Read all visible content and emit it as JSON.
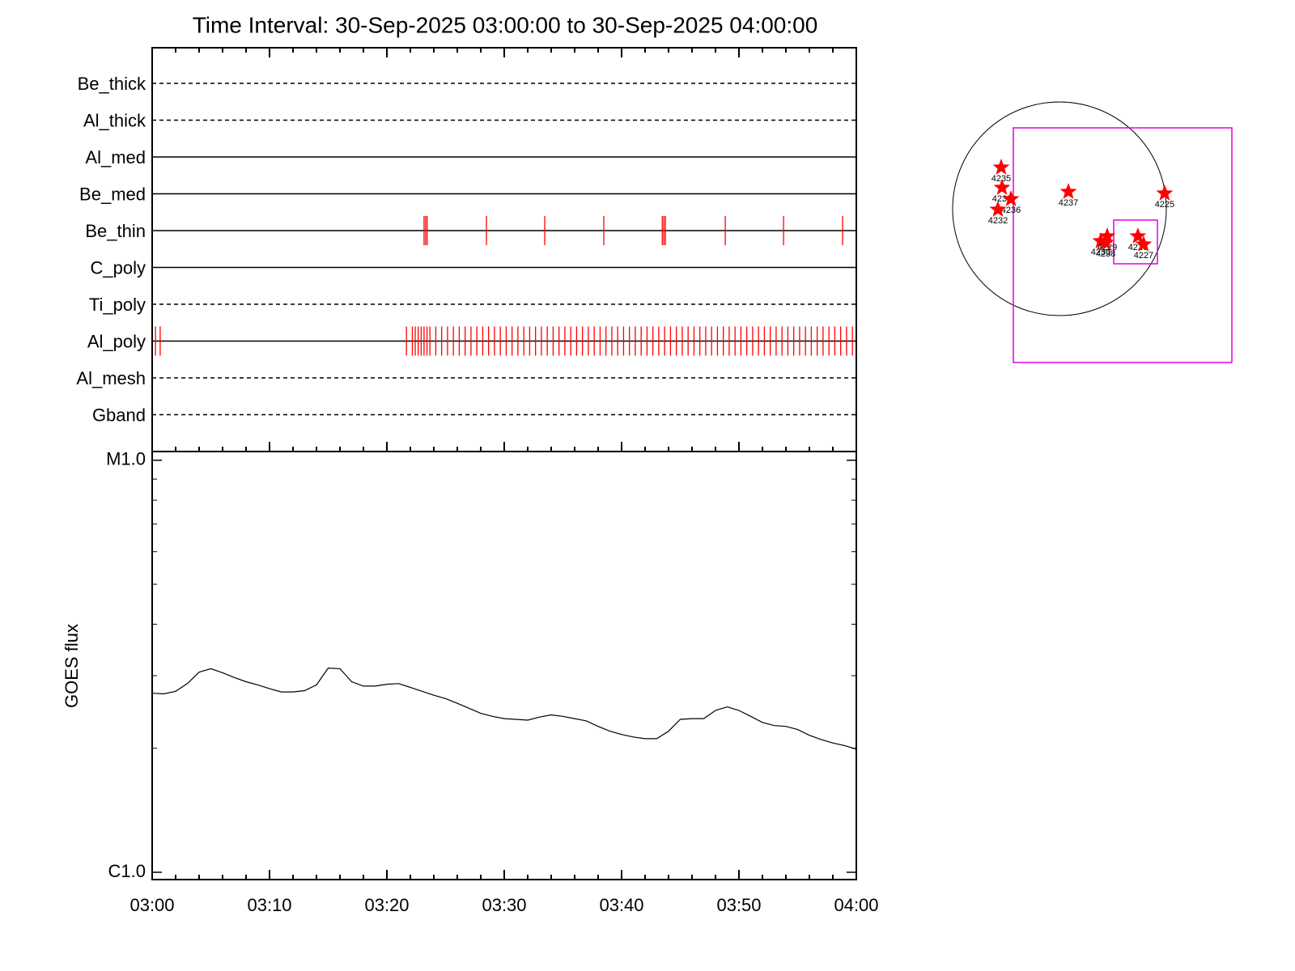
{
  "chart_data": [
    {
      "type": "event",
      "title": "Time Interval: 30-Sep-2025 03:00:00 to 30-Sep-2025 04:00:00",
      "xlim": [
        "03:00",
        "04:00"
      ],
      "event_color": "#ff0000",
      "rows": [
        {
          "name": "Be_thick",
          "dashed": true
        },
        {
          "name": "Al_thick",
          "dashed": true
        },
        {
          "name": "Al_med",
          "dashed": false
        },
        {
          "name": "Be_med",
          "dashed": false
        },
        {
          "name": "Be_thin",
          "dashed": false,
          "events": [
            "03:23:10",
            "03:23:18",
            "03:23:26",
            "03:28:29",
            "03:33:27",
            "03:38:29",
            "03:43:28",
            "03:43:36",
            "03:43:44",
            "03:48:50",
            "03:53:48",
            "03:58:50"
          ]
        },
        {
          "name": "C_poly",
          "dashed": false
        },
        {
          "name": "Ti_poly",
          "dashed": true
        },
        {
          "name": "Al_poly",
          "dashed": false,
          "events": [
            "03:00:17",
            "03:00:41",
            "03:21:40",
            "03:22:10",
            "03:22:25",
            "03:22:40",
            "03:22:55",
            "03:23:10",
            "03:23:25",
            "03:23:40",
            "03:24:10",
            "03:24:40",
            "03:25:10",
            "03:25:40",
            "03:26:10",
            "03:26:40",
            "03:27:10",
            "03:27:40",
            "03:28:10",
            "03:28:40",
            "03:29:10",
            "03:29:40",
            "03:30:10",
            "03:30:40",
            "03:31:10",
            "03:31:40",
            "03:32:10",
            "03:32:40",
            "03:33:10",
            "03:33:40",
            "03:34:10",
            "03:34:40",
            "03:35:10",
            "03:35:40",
            "03:36:10",
            "03:36:40",
            "03:37:10",
            "03:37:40",
            "03:38:10",
            "03:38:40",
            "03:39:10",
            "03:39:40",
            "03:40:10",
            "03:40:40",
            "03:41:10",
            "03:41:40",
            "03:42:10",
            "03:42:40",
            "03:43:10",
            "03:43:40",
            "03:44:10",
            "03:44:40",
            "03:45:10",
            "03:45:40",
            "03:46:10",
            "03:46:40",
            "03:47:10",
            "03:47:40",
            "03:48:10",
            "03:48:40",
            "03:49:10",
            "03:49:40",
            "03:50:10",
            "03:50:40",
            "03:51:10",
            "03:51:40",
            "03:52:10",
            "03:52:40",
            "03:53:10",
            "03:53:40",
            "03:54:10",
            "03:54:40",
            "03:55:10",
            "03:55:40",
            "03:56:10",
            "03:56:40",
            "03:57:10",
            "03:57:40",
            "03:58:10",
            "03:58:40",
            "03:59:10",
            "03:59:40"
          ]
        },
        {
          "name": "Al_mesh",
          "dashed": true
        },
        {
          "name": "Gband",
          "dashed": true
        }
      ]
    },
    {
      "type": "line",
      "ylabel": "GOES flux",
      "log": true,
      "color": "#000000",
      "xlim": [
        "03:00",
        "04:00"
      ],
      "xticks": [
        "03:00",
        "03:10",
        "03:20",
        "03:30",
        "03:40",
        "03:50",
        "04:00"
      ],
      "xminorticks": [
        "03:02",
        "03:04",
        "03:06",
        "03:08",
        "03:12",
        "03:14",
        "03:16",
        "03:18",
        "03:22",
        "03:24",
        "03:26",
        "03:28",
        "03:32",
        "03:34",
        "03:36",
        "03:38",
        "03:42",
        "03:44",
        "03:46",
        "03:48",
        "03:52",
        "03:54",
        "03:56",
        "03:58"
      ],
      "ylim": [
        9.6e-07,
        1.05e-05
      ],
      "yticks": [
        {
          "value": 1e-06,
          "label": "C1.0"
        },
        {
          "value": 1e-05,
          "label": "M1.0"
        }
      ],
      "yminorticks": [
        2e-06,
        3e-06,
        4e-06,
        5e-06,
        6e-06,
        7e-06,
        8e-06,
        9e-06
      ],
      "x": [
        "03:00",
        "03:01",
        "03:02",
        "03:03",
        "03:04",
        "03:05",
        "03:06",
        "03:07",
        "03:08",
        "03:09",
        "03:10",
        "03:11",
        "03:12",
        "03:13",
        "03:14",
        "03:15",
        "03:16",
        "03:17",
        "03:18",
        "03:19",
        "03:20",
        "03:21",
        "03:22",
        "03:23",
        "03:24",
        "03:25",
        "03:26",
        "03:27",
        "03:28",
        "03:29",
        "03:30",
        "03:31",
        "03:32",
        "03:33",
        "03:34",
        "03:35",
        "03:36",
        "03:37",
        "03:38",
        "03:39",
        "03:40",
        "03:41",
        "03:42",
        "03:43",
        "03:44",
        "03:45",
        "03:46",
        "03:47",
        "03:48",
        "03:49",
        "03:50",
        "03:51",
        "03:52",
        "03:53",
        "03:54",
        "03:55",
        "03:56",
        "03:57",
        "03:58",
        "03:59",
        "04:00"
      ],
      "values": [
        2.72e-06,
        2.71e-06,
        2.75e-06,
        2.87e-06,
        3.06e-06,
        3.12e-06,
        3.05e-06,
        2.97e-06,
        2.9e-06,
        2.85e-06,
        2.79e-06,
        2.74e-06,
        2.74e-06,
        2.76e-06,
        2.85e-06,
        3.13e-06,
        3.12e-06,
        2.9e-06,
        2.83e-06,
        2.83e-06,
        2.86e-06,
        2.87e-06,
        2.81e-06,
        2.75e-06,
        2.69e-06,
        2.64e-06,
        2.57e-06,
        2.5e-06,
        2.43e-06,
        2.39e-06,
        2.36e-06,
        2.35e-06,
        2.34e-06,
        2.38e-06,
        2.41e-06,
        2.39e-06,
        2.36e-06,
        2.33e-06,
        2.26e-06,
        2.2e-06,
        2.16e-06,
        2.13e-06,
        2.11e-06,
        2.11e-06,
        2.2e-06,
        2.35e-06,
        2.36e-06,
        2.36e-06,
        2.47e-06,
        2.52e-06,
        2.47e-06,
        2.39e-06,
        2.31e-06,
        2.27e-06,
        2.26e-06,
        2.22e-06,
        2.15e-06,
        2.1e-06,
        2.06e-06,
        2.03e-06,
        1.99e-06
      ]
    },
    {
      "type": "scatter",
      "color": "#ff0000",
      "labels": [
        "4235",
        "4233",
        "4236",
        "4232",
        "4237",
        "4225",
        "4230",
        "4229",
        "4238",
        "4226",
        "4227"
      ],
      "x": [
        -524,
        -516,
        -436,
        -553,
        80,
        945,
        371,
        429,
        415,
        705,
        756
      ],
      "values": [
        371,
        189,
        87,
        -7,
        153,
        138,
        -291,
        -247,
        -305,
        -247,
        -320
      ]
    }
  ]
}
